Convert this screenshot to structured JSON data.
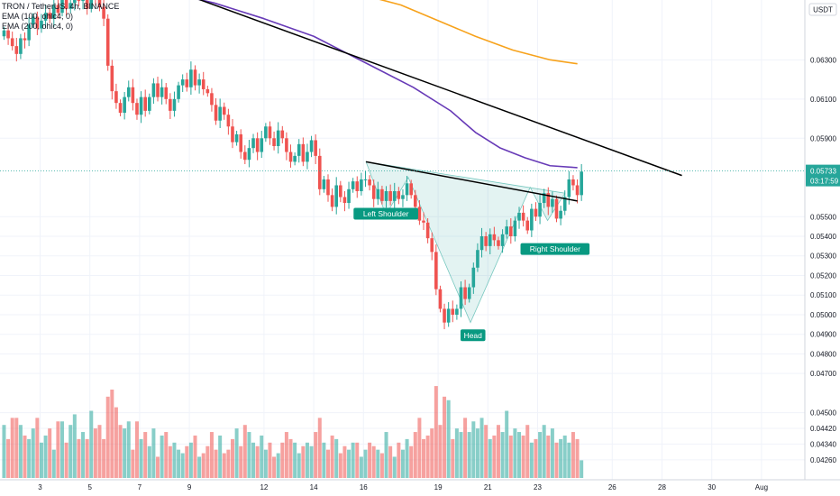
{
  "header": {
    "symbol_line": "TRON / TetherUS, 4h, BINANCE",
    "ema_a_line": "EMA (100, ohlc4, 0)",
    "ema_b_line": "EMA (200, ohlc4, 0)"
  },
  "price_axis": {
    "currency": "USDT",
    "current_price": "0.05733",
    "countdown": "03:17:59"
  },
  "colors": {
    "bull": "#26a69a",
    "bear": "#ef5350",
    "ema100": "#673ab7",
    "ema200": "#f7a21b",
    "pattern_fill": "#26a69a",
    "label_bg": "#089981",
    "trendline": "#000000"
  },
  "chart_data": {
    "type": "candlestick",
    "ylim": [
      0.0425,
      0.0655
    ],
    "x_ticks": [
      {
        "label": "3",
        "day": 3
      },
      {
        "label": "5",
        "day": 5
      },
      {
        "label": "7",
        "day": 7
      },
      {
        "label": "9",
        "day": 9
      },
      {
        "label": "12",
        "day": 12
      },
      {
        "label": "14",
        "day": 14
      },
      {
        "label": "16",
        "day": 16
      },
      {
        "label": "19",
        "day": 19
      },
      {
        "label": "21",
        "day": 21
      },
      {
        "label": "23",
        "day": 23
      },
      {
        "label": "26",
        "day": 26
      },
      {
        "label": "28",
        "day": 28
      },
      {
        "label": "30",
        "day": 30
      },
      {
        "label": "Aug",
        "day": 32
      }
    ],
    "y_ticks": [
      "0.06300",
      "0.06100",
      "0.05900",
      "0.05500",
      "0.05400",
      "0.05300",
      "0.05200",
      "0.05100",
      "0.05000",
      "0.04900",
      "0.04800",
      "0.04700",
      "0.04500",
      "0.04420",
      "0.04340",
      "0.04260"
    ],
    "candles_close": [
      0.0645,
      0.0641,
      0.0637,
      0.0633,
      0.0641,
      0.064,
      0.0648,
      0.0652,
      0.0646,
      0.065,
      0.0654,
      0.0651,
      0.0658,
      0.0654,
      0.0661,
      0.0656,
      0.0659,
      0.0665,
      0.066,
      0.0663,
      0.0656,
      0.0664,
      0.0661,
      0.0657,
      0.0651,
      0.0627,
      0.0614,
      0.0608,
      0.0603,
      0.0611,
      0.0616,
      0.0608,
      0.0602,
      0.0611,
      0.0604,
      0.0611,
      0.0618,
      0.0611,
      0.0616,
      0.061,
      0.0604,
      0.061,
      0.0617,
      0.062,
      0.0616,
      0.0625,
      0.0617,
      0.062,
      0.0615,
      0.0613,
      0.0607,
      0.0599,
      0.0606,
      0.0602,
      0.0596,
      0.0588,
      0.0592,
      0.0583,
      0.0579,
      0.0585,
      0.059,
      0.0583,
      0.059,
      0.0596,
      0.059,
      0.0586,
      0.0594,
      0.059,
      0.0583,
      0.0578,
      0.0581,
      0.0587,
      0.0578,
      0.0583,
      0.0589,
      0.0581,
      0.0564,
      0.0569,
      0.0561,
      0.0555,
      0.0566,
      0.056,
      0.0557,
      0.0564,
      0.0568,
      0.0563,
      0.0569,
      0.0569,
      0.0566,
      0.0559,
      0.0564,
      0.0558,
      0.0563,
      0.0558,
      0.0563,
      0.0559,
      0.0561,
      0.0567,
      0.0561,
      0.0555,
      0.0548,
      0.0547,
      0.0539,
      0.0532,
      0.0513,
      0.0503,
      0.0496,
      0.0503,
      0.05,
      0.0503,
      0.0514,
      0.0508,
      0.0514,
      0.0524,
      0.0533,
      0.054,
      0.0535,
      0.0541,
      0.0538,
      0.0535,
      0.0541,
      0.0545,
      0.054,
      0.0548,
      0.0552,
      0.0548,
      0.0543,
      0.0554,
      0.055,
      0.0557,
      0.0562,
      0.0555,
      0.0559,
      0.0549,
      0.0553,
      0.056,
      0.0569,
      0.0566,
      0.0561,
      0.0573
    ],
    "volume_height": [
      0.15,
      0.11,
      0.17,
      0.17,
      0.15,
      0.12,
      0.11,
      0.14,
      0.17,
      0.1,
      0.12,
      0.14,
      0.08,
      0.16,
      0.16,
      0.1,
      0.15,
      0.18,
      0.11,
      0.13,
      0.11,
      0.19,
      0.14,
      0.15,
      0.11,
      0.23,
      0.25,
      0.2,
      0.15,
      0.14,
      0.16,
      0.08,
      0.16,
      0.11,
      0.13,
      0.09,
      0.14,
      0.06,
      0.12,
      0.13,
      0.09,
      0.1,
      0.08,
      0.07,
      0.09,
      0.1,
      0.12,
      0.06,
      0.07,
      0.09,
      0.13,
      0.08,
      0.12,
      0.07,
      0.08,
      0.11,
      0.14,
      0.09,
      0.15,
      0.13,
      0.1,
      0.09,
      0.12,
      0.08,
      0.1,
      0.06,
      0.07,
      0.1,
      0.13,
      0.11,
      0.1,
      0.07,
      0.09,
      0.1,
      0.09,
      0.13,
      0.17,
      0.1,
      0.08,
      0.12,
      0.11,
      0.07,
      0.09,
      0.08,
      0.1,
      0.1,
      0.06,
      0.08,
      0.1,
      0.09,
      0.08,
      0.07,
      0.13,
      0.09,
      0.06,
      0.1,
      0.08,
      0.11,
      0.09,
      0.13,
      0.17,
      0.11,
      0.12,
      0.14,
      0.26,
      0.15,
      0.23,
      0.22,
      0.11,
      0.14,
      0.13,
      0.17,
      0.13,
      0.16,
      0.14,
      0.17,
      0.15,
      0.11,
      0.12,
      0.15,
      0.13,
      0.19,
      0.12,
      0.14,
      0.13,
      0.12,
      0.15,
      0.1,
      0.11,
      0.13,
      0.15,
      0.12,
      0.14,
      0.1,
      0.11,
      0.12,
      0.1,
      0.13,
      0.11,
      0.05
    ],
    "ema100": [
      [
        8.3,
        0.0664
      ],
      [
        10,
        0.0659
      ],
      [
        12,
        0.0651
      ],
      [
        14,
        0.0642
      ],
      [
        16,
        0.0629
      ],
      [
        18,
        0.0616
      ],
      [
        19.5,
        0.0604
      ],
      [
        20.5,
        0.0593
      ],
      [
        21.5,
        0.0585
      ],
      [
        22.5,
        0.058
      ],
      [
        23.5,
        0.0576
      ],
      [
        24.6,
        0.0575
      ]
    ],
    "ema200": [
      [
        16,
        0.0663
      ],
      [
        17.5,
        0.0658
      ],
      [
        19,
        0.065
      ],
      [
        20.5,
        0.0642
      ],
      [
        22,
        0.0635
      ],
      [
        23.5,
        0.063
      ],
      [
        24.6,
        0.0628
      ]
    ],
    "trend_long": [
      [
        8.7,
        0.0664
      ],
      [
        28.8,
        0.0571
      ]
    ],
    "neckline": [
      [
        16.1,
        0.0578
      ],
      [
        24.6,
        0.0558
      ]
    ],
    "pattern": [
      [
        16.1,
        0.0578
      ],
      [
        16.9,
        0.0551
      ],
      [
        17.8,
        0.057
      ],
      [
        20.3,
        0.0496
      ],
      [
        22.7,
        0.0565
      ],
      [
        23.4,
        0.0548
      ],
      [
        24.1,
        0.0562
      ]
    ],
    "labels": {
      "left_shoulder": "Left Shoulder",
      "head": "Head",
      "right_shoulder": "Right Shoulder"
    }
  }
}
